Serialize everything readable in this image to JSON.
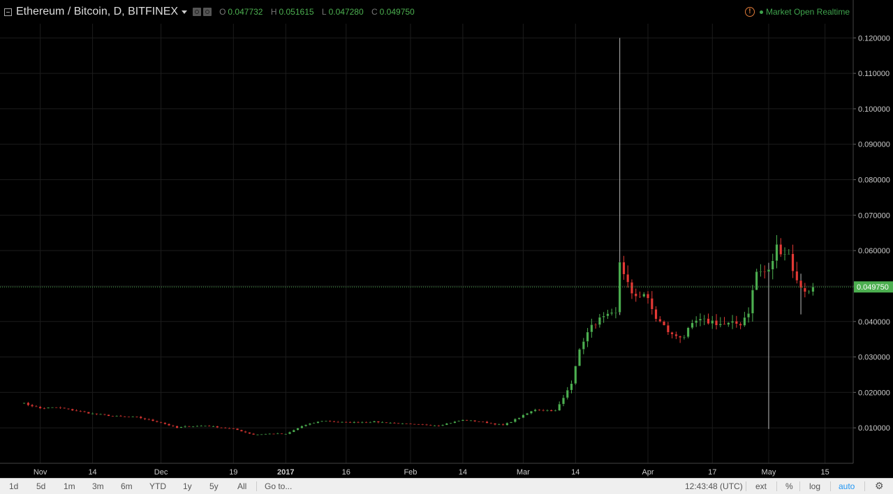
{
  "header": {
    "title": "Ethereum / Bitcoin, D, BITFINEX",
    "ohlc": [
      {
        "key": "O",
        "value": "0.047732"
      },
      {
        "key": "H",
        "value": "0.051615"
      },
      {
        "key": "L",
        "value": "0.047280"
      },
      {
        "key": "C",
        "value": "0.049750"
      }
    ],
    "status": "Market Open  Realtime"
  },
  "colors": {
    "up": "#4caf50",
    "down": "#e53935",
    "grid": "#1c1c1c",
    "background": "#000000",
    "last_price": "#4caf50",
    "axis_text": "#cccccc"
  },
  "bottom": {
    "ranges": [
      "1d",
      "5d",
      "1m",
      "3m",
      "6m",
      "YTD",
      "1y",
      "5y",
      "All"
    ],
    "goto": "Go to...",
    "time": "12:43:48 (UTC)",
    "options": [
      "ext",
      "%",
      "log",
      "auto"
    ],
    "settings_icon": "gear-icon"
  },
  "chart_data": {
    "type": "candlestick",
    "title": "Ethereum / Bitcoin, D, BITFINEX",
    "ylim": [
      0.0,
      0.124
    ],
    "y_ticks": [
      "0.010000",
      "0.020000",
      "0.030000",
      "0.040000",
      "0.050000",
      "0.060000",
      "0.070000",
      "0.080000",
      "0.090000",
      "0.100000",
      "0.110000",
      "0.120000"
    ],
    "last_price": "0.049750",
    "x_labels": [
      {
        "label": "Nov",
        "date": "2016-11-01"
      },
      {
        "label": "14",
        "date": "2016-11-14"
      },
      {
        "label": "Dec",
        "date": "2016-12-01"
      },
      {
        "label": "19",
        "date": "2016-12-19"
      },
      {
        "label": "2017",
        "date": "2017-01-01"
      },
      {
        "label": "16",
        "date": "2017-01-16"
      },
      {
        "label": "Feb",
        "date": "2017-02-01"
      },
      {
        "label": "14",
        "date": "2017-02-14"
      },
      {
        "label": "Mar",
        "date": "2017-03-01"
      },
      {
        "label": "14",
        "date": "2017-03-14"
      },
      {
        "label": "Apr",
        "date": "2017-04-01"
      },
      {
        "label": "17",
        "date": "2017-04-17"
      },
      {
        "label": "May",
        "date": "2017-05-01"
      },
      {
        "label": "15",
        "date": "2017-05-15"
      }
    ],
    "keypoints": [
      [
        "2016-10-27",
        0.0172
      ],
      [
        "2016-11-01",
        0.0155
      ],
      [
        "2016-11-05",
        0.0158
      ],
      [
        "2016-11-14",
        0.014
      ],
      [
        "2016-11-20",
        0.0132
      ],
      [
        "2016-11-25",
        0.013
      ],
      [
        "2016-12-01",
        0.0115
      ],
      [
        "2016-12-05",
        0.01
      ],
      [
        "2016-12-07",
        0.0104
      ],
      [
        "2016-12-12",
        0.0106
      ],
      [
        "2016-12-19",
        0.0097
      ],
      [
        "2016-12-24",
        0.0081
      ],
      [
        "2016-12-29",
        0.0084
      ],
      [
        "2017-01-01",
        0.0082
      ],
      [
        "2017-01-05",
        0.0105
      ],
      [
        "2017-01-10",
        0.012
      ],
      [
        "2017-01-16",
        0.0115
      ],
      [
        "2017-01-23",
        0.0117
      ],
      [
        "2017-02-01",
        0.011
      ],
      [
        "2017-02-08",
        0.0107
      ],
      [
        "2017-02-14",
        0.0122
      ],
      [
        "2017-02-18",
        0.0118
      ],
      [
        "2017-02-24",
        0.0107
      ],
      [
        "2017-03-01",
        0.0135
      ],
      [
        "2017-03-04",
        0.0152
      ],
      [
        "2017-03-09",
        0.0148
      ],
      [
        "2017-03-11",
        0.0183
      ],
      [
        "2017-03-13",
        0.023
      ],
      [
        "2017-03-14",
        0.028
      ],
      [
        "2017-03-16",
        0.035
      ],
      [
        "2017-03-19",
        0.04
      ],
      [
        "2017-03-24",
        0.042
      ],
      [
        "2017-03-25",
        0.057
      ],
      [
        "2017-03-26",
        0.054
      ],
      [
        "2017-03-28",
        0.047
      ],
      [
        "2017-03-31",
        0.048
      ],
      [
        "2017-04-03",
        0.041
      ],
      [
        "2017-04-07",
        0.036
      ],
      [
        "2017-04-10",
        0.036
      ],
      [
        "2017-04-13",
        0.04
      ],
      [
        "2017-04-17",
        0.04
      ],
      [
        "2017-04-20",
        0.039
      ],
      [
        "2017-04-24",
        0.0395
      ],
      [
        "2017-04-26",
        0.043
      ],
      [
        "2017-04-28",
        0.054
      ],
      [
        "2017-05-01",
        0.054
      ],
      [
        "2017-05-03",
        0.061
      ],
      [
        "2017-05-06",
        0.059
      ],
      [
        "2017-05-08",
        0.051
      ],
      [
        "2017-05-11",
        0.048
      ],
      [
        "2017-05-12",
        0.0497
      ]
    ],
    "spikes": [
      {
        "date": "2017-03-25",
        "high": 0.12
      },
      {
        "date": "2017-05-01",
        "low": 0.0097
      },
      {
        "date": "2017-05-09",
        "low": 0.042
      }
    ]
  }
}
